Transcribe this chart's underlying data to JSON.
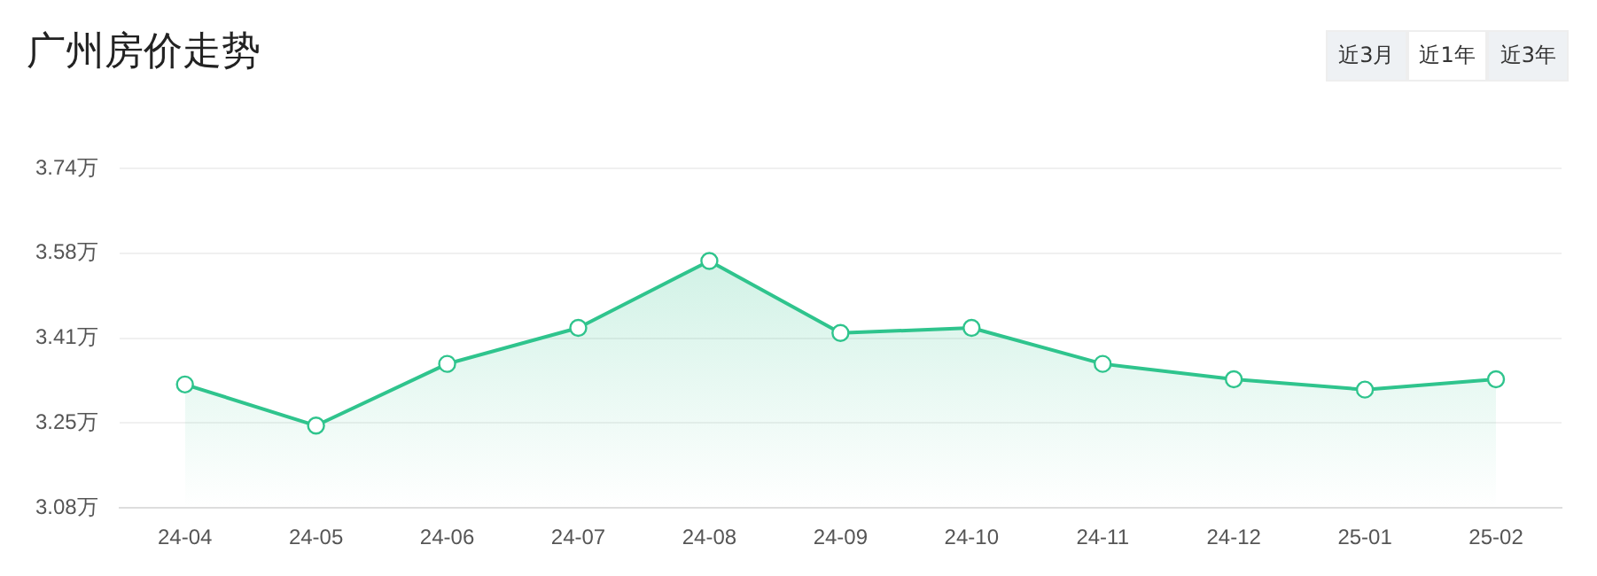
{
  "chart_data": {
    "type": "area",
    "title": "广州房价走势",
    "annotations": [
      "近3月",
      "近1年",
      "近3年"
    ],
    "categories": [
      "24-04",
      "24-05",
      "24-06",
      "24-07",
      "24-08",
      "24-09",
      "24-10",
      "24-11",
      "24-12",
      "25-01",
      "25-02"
    ],
    "series": [
      {
        "color": "#2fc48d",
        "values": [
          3.32,
          3.24,
          3.36,
          3.43,
          3.56,
          3.42,
          3.43,
          3.36,
          3.33,
          3.31,
          3.33
        ]
      }
    ],
    "ylim": [
      3.08,
      3.74
    ],
    "yticks": [
      {
        "value": 3.08,
        "label": "3.08万"
      },
      {
        "value": 3.245,
        "label": "3.25万"
      },
      {
        "value": 3.41,
        "label": "3.41万"
      },
      {
        "value": 3.575,
        "label": "3.58万"
      },
      {
        "value": 3.74,
        "label": "3.74万"
      }
    ],
    "grid": "y",
    "marker": "circle",
    "legend": false
  }
}
